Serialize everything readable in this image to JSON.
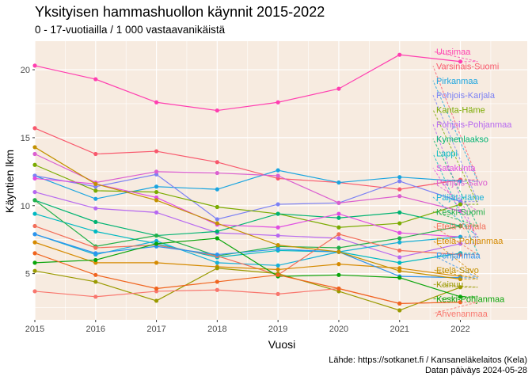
{
  "chart_data": {
    "type": "line",
    "title": "Yksityisen hammashuollon käynnit 2015-2022",
    "subtitle": "0 - 17-vuotiailla / 1 000 vastaavanikäistä",
    "xlabel": "Vuosi",
    "ylabel": "Käyntien lkm",
    "caption_lines": [
      "Lähde: https://sotkanet.fi / Kansaneläkelaitos (Kela)",
      "Datan päiväys 2024-05-28"
    ],
    "x": [
      2015,
      2016,
      2017,
      2018,
      2019,
      2020,
      2021,
      2022
    ],
    "xlim": [
      2015,
      2023.1
    ],
    "ylim": [
      1.6,
      22.1
    ],
    "xticks": [
      2015,
      2016,
      2017,
      2018,
      2019,
      2020,
      2021,
      2022
    ],
    "yticks": [
      5,
      10,
      15,
      20
    ],
    "background": "#f7ebe0",
    "grid": true,
    "legend": "direct labels right",
    "series": [
      {
        "name": "Uusimaa",
        "color": "#ff3fb0",
        "values": [
          20.3,
          19.3,
          17.6,
          17.0,
          17.6,
          18.6,
          21.1,
          20.6
        ]
      },
      {
        "name": "Varsinais-Suomi",
        "color": "#f8586c",
        "values": [
          15.7,
          13.8,
          14.0,
          13.2,
          12.0,
          11.7,
          11.2,
          11.9
        ]
      },
      {
        "name": "Pirkanmaa",
        "color": "#1aa5e0",
        "values": [
          12.2,
          10.5,
          11.4,
          11.2,
          12.6,
          11.7,
          12.1,
          11.8
        ]
      },
      {
        "name": "Pohjois-Karjala",
        "color": "#7c81f4",
        "values": [
          12.2,
          11.4,
          12.3,
          9.0,
          10.1,
          10.2,
          11.8,
          10.3
        ]
      },
      {
        "name": "Kanta-Häme",
        "color": "#7aab00",
        "values": [
          13.0,
          11.1,
          11.0,
          9.9,
          9.4,
          8.4,
          8.7,
          10.1
        ]
      },
      {
        "name": "Pohjois-Pohjanmaa",
        "color": "#b668f0",
        "values": [
          11.0,
          9.8,
          9.5,
          8.0,
          7.8,
          7.6,
          6.2,
          7.2
        ]
      },
      {
        "name": "Kymenlaakso",
        "color": "#00b372",
        "values": [
          10.4,
          8.8,
          7.8,
          8.1,
          9.4,
          9.1,
          9.5,
          8.5
        ]
      },
      {
        "name": "Lappi",
        "color": "#00b9c2",
        "values": [
          9.4,
          8.1,
          7.2,
          6.2,
          6.7,
          6.6,
          5.8,
          6.5
        ]
      },
      {
        "name": "Satakunta",
        "color": "#e04ee2",
        "values": [
          12.0,
          11.6,
          10.6,
          8.6,
          8.4,
          9.4,
          8.0,
          7.7
        ]
      },
      {
        "name": "Pohjois-Savo",
        "color": "#db5fd0",
        "values": [
          13.8,
          11.7,
          12.5,
          12.4,
          12.2,
          10.2,
          10.7,
          9.6
        ]
      },
      {
        "name": "Päijät-Häme",
        "color": "#16b0d8",
        "values": [
          7.9,
          6.4,
          7.4,
          5.8,
          5.6,
          6.6,
          7.3,
          7.7
        ]
      },
      {
        "name": "Keski-Suomi",
        "color": "#23b04a",
        "values": [
          10.4,
          7.0,
          7.8,
          6.3,
          7.0,
          6.9,
          7.6,
          8.5
        ]
      },
      {
        "name": "Etelä-Karjala",
        "color": "#f26e5a",
        "values": [
          8.5,
          6.9,
          7.1,
          6.3,
          4.9,
          7.9,
          6.7,
          6.4
        ]
      },
      {
        "name": "Etelä-Pohjanmaa",
        "color": "#d58a00",
        "values": [
          7.3,
          5.8,
          5.8,
          5.5,
          5.3,
          5.7,
          5.4,
          4.8
        ]
      },
      {
        "name": "Pohjanmaa",
        "color": "#2d93ee",
        "values": [
          7.9,
          6.5,
          7.0,
          6.4,
          6.8,
          6.6,
          4.8,
          4.7
        ]
      },
      {
        "name": "Etelä-Savo",
        "color": "#c39100",
        "values": [
          14.3,
          11.6,
          10.4,
          8.7,
          7.1,
          6.6,
          5.2,
          4.6
        ]
      },
      {
        "name": "Kainuu",
        "color": "#9a9a00",
        "values": [
          5.2,
          4.4,
          3.0,
          5.4,
          5.0,
          3.7,
          2.3,
          4.0
        ]
      },
      {
        "name": "Keski-Pohjanmaa",
        "color": "#0aa40a",
        "values": [
          5.8,
          6.0,
          7.2,
          7.6,
          4.8,
          4.9,
          4.7,
          3.3
        ]
      },
      {
        "name": "Ahvenanmaa",
        "color": "#f8766d",
        "values": [
          3.7,
          3.3,
          3.7,
          3.8,
          3.5,
          3.9,
          2.8,
          2.9
        ]
      },
      {
        "name": "",
        "color": "#f0641e",
        "values": [
          6.5,
          4.9,
          3.9,
          4.4,
          4.9,
          3.9,
          2.8,
          2.9
        ]
      }
    ]
  }
}
